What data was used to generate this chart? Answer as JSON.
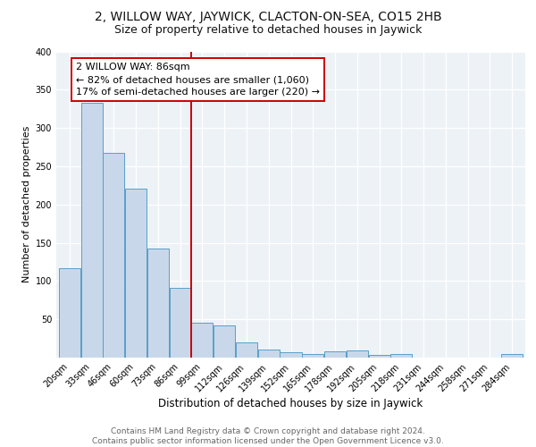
{
  "title": "2, WILLOW WAY, JAYWICK, CLACTON-ON-SEA, CO15 2HB",
  "subtitle": "Size of property relative to detached houses in Jaywick",
  "xlabel": "Distribution of detached houses by size in Jaywick",
  "ylabel": "Number of detached properties",
  "bar_labels": [
    "20sqm",
    "33sqm",
    "46sqm",
    "60sqm",
    "73sqm",
    "86sqm",
    "99sqm",
    "112sqm",
    "126sqm",
    "139sqm",
    "152sqm",
    "165sqm",
    "178sqm",
    "192sqm",
    "205sqm",
    "218sqm",
    "231sqm",
    "244sqm",
    "258sqm",
    "271sqm",
    "284sqm"
  ],
  "bar_values": [
    117,
    333,
    268,
    221,
    143,
    91,
    45,
    42,
    20,
    10,
    7,
    5,
    8,
    9,
    3,
    5,
    0,
    0,
    0,
    0,
    5
  ],
  "bar_color": "#c8d8ea",
  "bar_edge_color": "#5a9ec8",
  "bar_edge_width": 0.7,
  "vline_x": 5.5,
  "vline_color": "#cc0000",
  "annotation_text": "2 WILLOW WAY: 86sqm\n← 82% of detached houses are smaller (1,060)\n17% of semi-detached houses are larger (220) →",
  "annotation_box_color": "#ffffff",
  "annotation_box_edge_color": "#cc0000",
  "ylim": [
    0,
    400
  ],
  "yticks": [
    0,
    50,
    100,
    150,
    200,
    250,
    300,
    350,
    400
  ],
  "background_color": "#edf2f7",
  "footer_text": "Contains HM Land Registry data © Crown copyright and database right 2024.\nContains public sector information licensed under the Open Government Licence v3.0.",
  "title_fontsize": 10,
  "subtitle_fontsize": 9,
  "xlabel_fontsize": 8.5,
  "ylabel_fontsize": 8,
  "tick_fontsize": 7,
  "annotation_fontsize": 8,
  "footer_fontsize": 6.5
}
